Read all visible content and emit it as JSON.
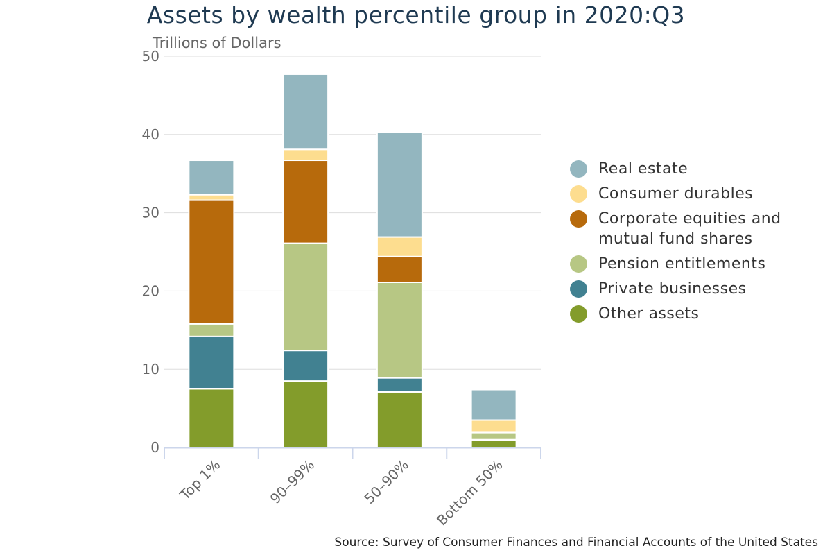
{
  "chart_data": {
    "type": "bar",
    "stacked": true,
    "title": "Assets by wealth percentile group in 2020:Q3",
    "ylabel": "Trillions of Dollars",
    "xlabel": "",
    "ylim": [
      0,
      50
    ],
    "yticks": [
      0,
      10,
      20,
      30,
      40,
      50
    ],
    "grid": true,
    "legend_position": "right",
    "categories": [
      "Top 1%",
      "90–99%",
      "50–90%",
      "Bottom 50%"
    ],
    "series": [
      {
        "name": "Other assets",
        "color": "#839c2b",
        "values": [
          7.5,
          8.5,
          7.1,
          0.9
        ]
      },
      {
        "name": "Private businesses",
        "color": "#418191",
        "values": [
          6.7,
          3.9,
          1.8,
          0.1
        ]
      },
      {
        "name": "Pension entitlements",
        "color": "#b7c784",
        "values": [
          1.6,
          13.7,
          12.2,
          0.9
        ]
      },
      {
        "name": "Corporate equities and mutual fund shares",
        "color": "#b76a0c",
        "values": [
          15.8,
          10.6,
          3.3,
          0.1
        ]
      },
      {
        "name": "Consumer durables",
        "color": "#fddd8f",
        "values": [
          0.7,
          1.4,
          2.5,
          1.5
        ]
      },
      {
        "name": "Real estate",
        "color": "#93b6bf",
        "values": [
          4.4,
          9.6,
          13.4,
          3.9
        ]
      }
    ]
  },
  "source": "Source: Survey of Consumer Finances and Financial Accounts of the United States"
}
